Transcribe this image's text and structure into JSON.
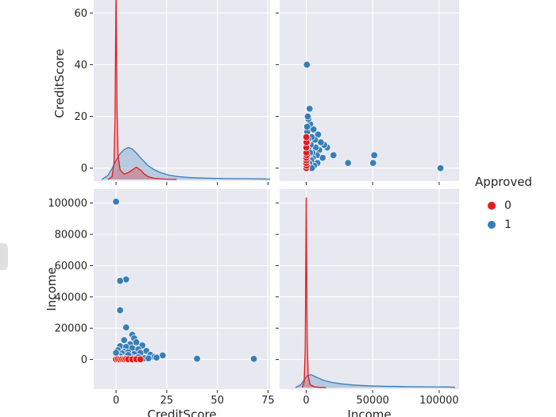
{
  "colors": {
    "panel_bg": "#e8e8f0",
    "grid": "#ffffff",
    "tick": "#262626",
    "text": "#262626",
    "red": "#e41a1c",
    "blue": "#377eb8"
  },
  "labels": {
    "y_top": "CreditScore",
    "y_bottom": "Income",
    "x_left": "CreditScore",
    "x_right": "Income"
  },
  "legend": {
    "title": "Approved",
    "items": [
      {
        "label": "0",
        "color": "#e41a1c"
      },
      {
        "label": "1",
        "color": "#377eb8"
      }
    ]
  },
  "chart_data": {
    "type": "pairplot",
    "variables": [
      "CreditScore",
      "Income"
    ],
    "hue": "Approved",
    "legend_position": "right",
    "grid": true,
    "panels": [
      {
        "row": "CreditScore",
        "col": "CreditScore",
        "kind": "kde"
      },
      {
        "row": "CreditScore",
        "col": "Income",
        "kind": "scatter"
      },
      {
        "row": "Income",
        "col": "CreditScore",
        "kind": "scatter"
      },
      {
        "row": "Income",
        "col": "Income",
        "kind": "kde"
      }
    ],
    "axes": {
      "CreditScore": {
        "x_ticks": [
          0,
          25,
          50,
          75
        ],
        "x_tick_labels": [
          "0",
          "25",
          "50",
          "75"
        ],
        "y_ticks": [
          0,
          20,
          40,
          60
        ],
        "y_tick_labels": [
          "0",
          "20",
          "40",
          "60"
        ],
        "x_range": [
          -11,
          76
        ],
        "y_range": [
          -5,
          65
        ]
      },
      "Income": {
        "x_ticks": [
          0,
          50000,
          100000
        ],
        "x_tick_labels": [
          "0",
          "50000",
          "100000"
        ],
        "y_ticks": [
          0,
          20000,
          40000,
          60000,
          80000,
          100000
        ],
        "y_tick_labels": [
          "0",
          "20000",
          "40000",
          "60000",
          "80000",
          "100000"
        ],
        "x_range": [
          -20000,
          115000
        ],
        "y_range": [
          -19000,
          109000
        ]
      }
    },
    "points": {
      "columns": [
        "CreditScore",
        "Income",
        "Approved"
      ],
      "rows": [
        [
          0,
          101000,
          1
        ],
        [
          5,
          51200,
          1
        ],
        [
          2,
          50300,
          1
        ],
        [
          2,
          31500,
          1
        ],
        [
          5,
          20500,
          1
        ],
        [
          8,
          15800,
          1
        ],
        [
          9,
          13500,
          1
        ],
        [
          4,
          12400,
          1
        ],
        [
          10,
          11000,
          1
        ],
        [
          7,
          9800,
          1
        ],
        [
          13,
          9000,
          1
        ],
        [
          2,
          8500,
          1
        ],
        [
          5,
          8000,
          1
        ],
        [
          8,
          7200,
          1
        ],
        [
          11,
          6500,
          1
        ],
        [
          1,
          6000,
          1
        ],
        [
          15,
          5500,
          1
        ],
        [
          4,
          5000,
          1
        ],
        [
          6,
          4600,
          1
        ],
        [
          12,
          4200,
          1
        ],
        [
          3,
          3800,
          1
        ],
        [
          9,
          3400,
          1
        ],
        [
          17,
          3000,
          1
        ],
        [
          23,
          2600,
          1
        ],
        [
          2,
          2200,
          1
        ],
        [
          7,
          1900,
          1
        ],
        [
          19,
          1600,
          1
        ],
        [
          5,
          1300,
          1
        ],
        [
          10,
          1000,
          1
        ],
        [
          14,
          800,
          1
        ],
        [
          1,
          600,
          1
        ],
        [
          40,
          500,
          1
        ],
        [
          68,
          400,
          1
        ],
        [
          3,
          300,
          1
        ],
        [
          8,
          150,
          1
        ],
        [
          16,
          700,
          1
        ],
        [
          20,
          1200,
          1
        ],
        [
          6,
          2900,
          1
        ],
        [
          11,
          1400,
          1
        ],
        [
          0,
          4300,
          1
        ],
        [
          0,
          100,
          0
        ],
        [
          1,
          250,
          0
        ],
        [
          2,
          60,
          0
        ],
        [
          3,
          180,
          0
        ],
        [
          4,
          90,
          0
        ],
        [
          5,
          300,
          0
        ],
        [
          6,
          150,
          0
        ],
        [
          8,
          80,
          0
        ],
        [
          10,
          200,
          0
        ],
        [
          12,
          120,
          0
        ]
      ]
    },
    "kde": {
      "CreditScore": {
        "0": [
          [
            -4,
            0
          ],
          [
            -2,
            0.015
          ],
          [
            -1,
            0.09
          ],
          [
            -0.5,
            0.33
          ],
          [
            0,
            1.05
          ],
          [
            0.5,
            0.39
          ],
          [
            1,
            0.135
          ],
          [
            2,
            0.053
          ],
          [
            4,
            0.03
          ],
          [
            6,
            0.038
          ],
          [
            8,
            0.053
          ],
          [
            10,
            0.068
          ],
          [
            12,
            0.053
          ],
          [
            14,
            0.03
          ],
          [
            16,
            0.015
          ],
          [
            19,
            0.006
          ],
          [
            24,
            0.002
          ],
          [
            30,
            0
          ]
        ],
        "1": [
          [
            -7,
            0
          ],
          [
            -4,
            0.023
          ],
          [
            -2,
            0.06
          ],
          [
            0,
            0.105
          ],
          [
            2,
            0.143
          ],
          [
            4,
            0.165
          ],
          [
            6,
            0.177
          ],
          [
            8,
            0.168
          ],
          [
            10,
            0.147
          ],
          [
            12,
            0.12
          ],
          [
            14,
            0.098
          ],
          [
            16,
            0.075
          ],
          [
            19,
            0.053
          ],
          [
            22,
            0.038
          ],
          [
            26,
            0.024
          ],
          [
            30,
            0.017
          ],
          [
            36,
            0.011
          ],
          [
            45,
            0.007
          ],
          [
            55,
            0.005
          ],
          [
            65,
            0.0045
          ],
          [
            72,
            0.003
          ],
          [
            78,
            0.0015
          ]
        ]
      },
      "Income": {
        "0": [
          [
            -3000,
            0
          ],
          [
            -1500,
            0.03
          ],
          [
            -700,
            0.2
          ],
          [
            0,
            0.95
          ],
          [
            700,
            0.25
          ],
          [
            1500,
            0.06
          ],
          [
            3000,
            0.015
          ],
          [
            6000,
            0.004
          ],
          [
            10000,
            0.001
          ],
          [
            15000,
            0
          ]
        ],
        "1": [
          [
            -8000,
            0
          ],
          [
            -4000,
            0.015
          ],
          [
            -1000,
            0.044
          ],
          [
            1000,
            0.061
          ],
          [
            4000,
            0.064
          ],
          [
            8000,
            0.051
          ],
          [
            13000,
            0.037
          ],
          [
            19000,
            0.026
          ],
          [
            26000,
            0.019
          ],
          [
            35000,
            0.013
          ],
          [
            46000,
            0.009
          ],
          [
            58000,
            0.0065
          ],
          [
            72000,
            0.005
          ],
          [
            86000,
            0.004
          ],
          [
            98000,
            0.0037
          ],
          [
            106000,
            0.003
          ],
          [
            112000,
            0.001
          ]
        ]
      }
    }
  }
}
